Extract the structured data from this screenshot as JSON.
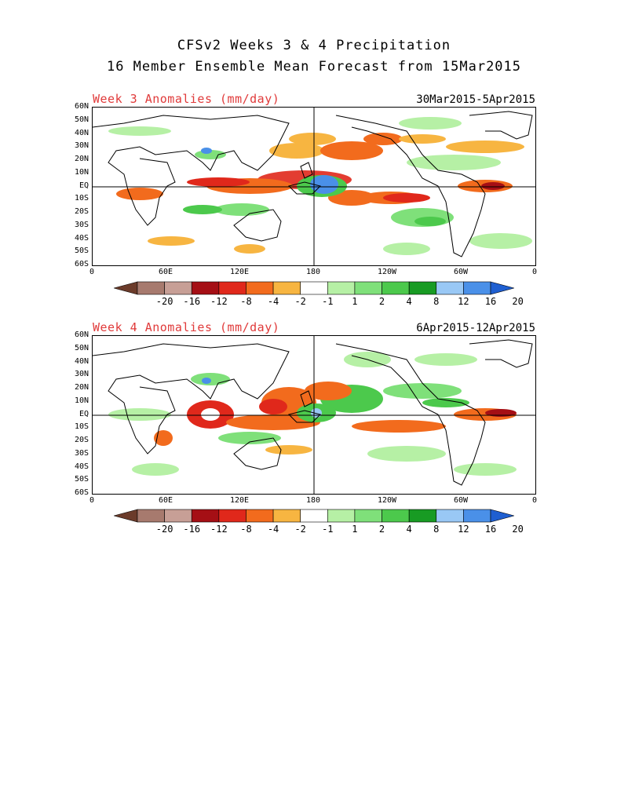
{
  "header": {
    "line1": "CFSv2 Weeks 3 & 4 Precipitation",
    "line2": "16 Member Ensemble Mean Forecast from 15Mar2015"
  },
  "panels": [
    {
      "title": "Week 3 Anomalies (mm/day)",
      "dates": "30Mar2015-5Apr2015"
    },
    {
      "title": "Week 4 Anomalies (mm/day)",
      "dates": "6Apr2015-12Apr2015"
    }
  ],
  "lat_labels": [
    "60N",
    "50N",
    "40N",
    "30N",
    "20N",
    "10N",
    "EQ",
    "10S",
    "20S",
    "30S",
    "40S",
    "50S",
    "60S"
  ],
  "lon_labels": [
    "0",
    "60E",
    "120E",
    "180",
    "120W",
    "60W",
    "0"
  ],
  "colorbar": {
    "labels": [
      "-20",
      "-16",
      "-12",
      "-8",
      "-4",
      "-2",
      "-1",
      "1",
      "2",
      "4",
      "8",
      "12",
      "16",
      "20"
    ],
    "colors": [
      "#6b3b2a",
      "#a77a6e",
      "#c79f96",
      "#a50f15",
      "#e0281b",
      "#f26b1d",
      "#f7b541",
      "#ffffff",
      "#b6f0a5",
      "#7fe07a",
      "#4cc94c",
      "#189b23",
      "#99c8f5",
      "#4a90e8",
      "#1f5fd1"
    ]
  }
}
